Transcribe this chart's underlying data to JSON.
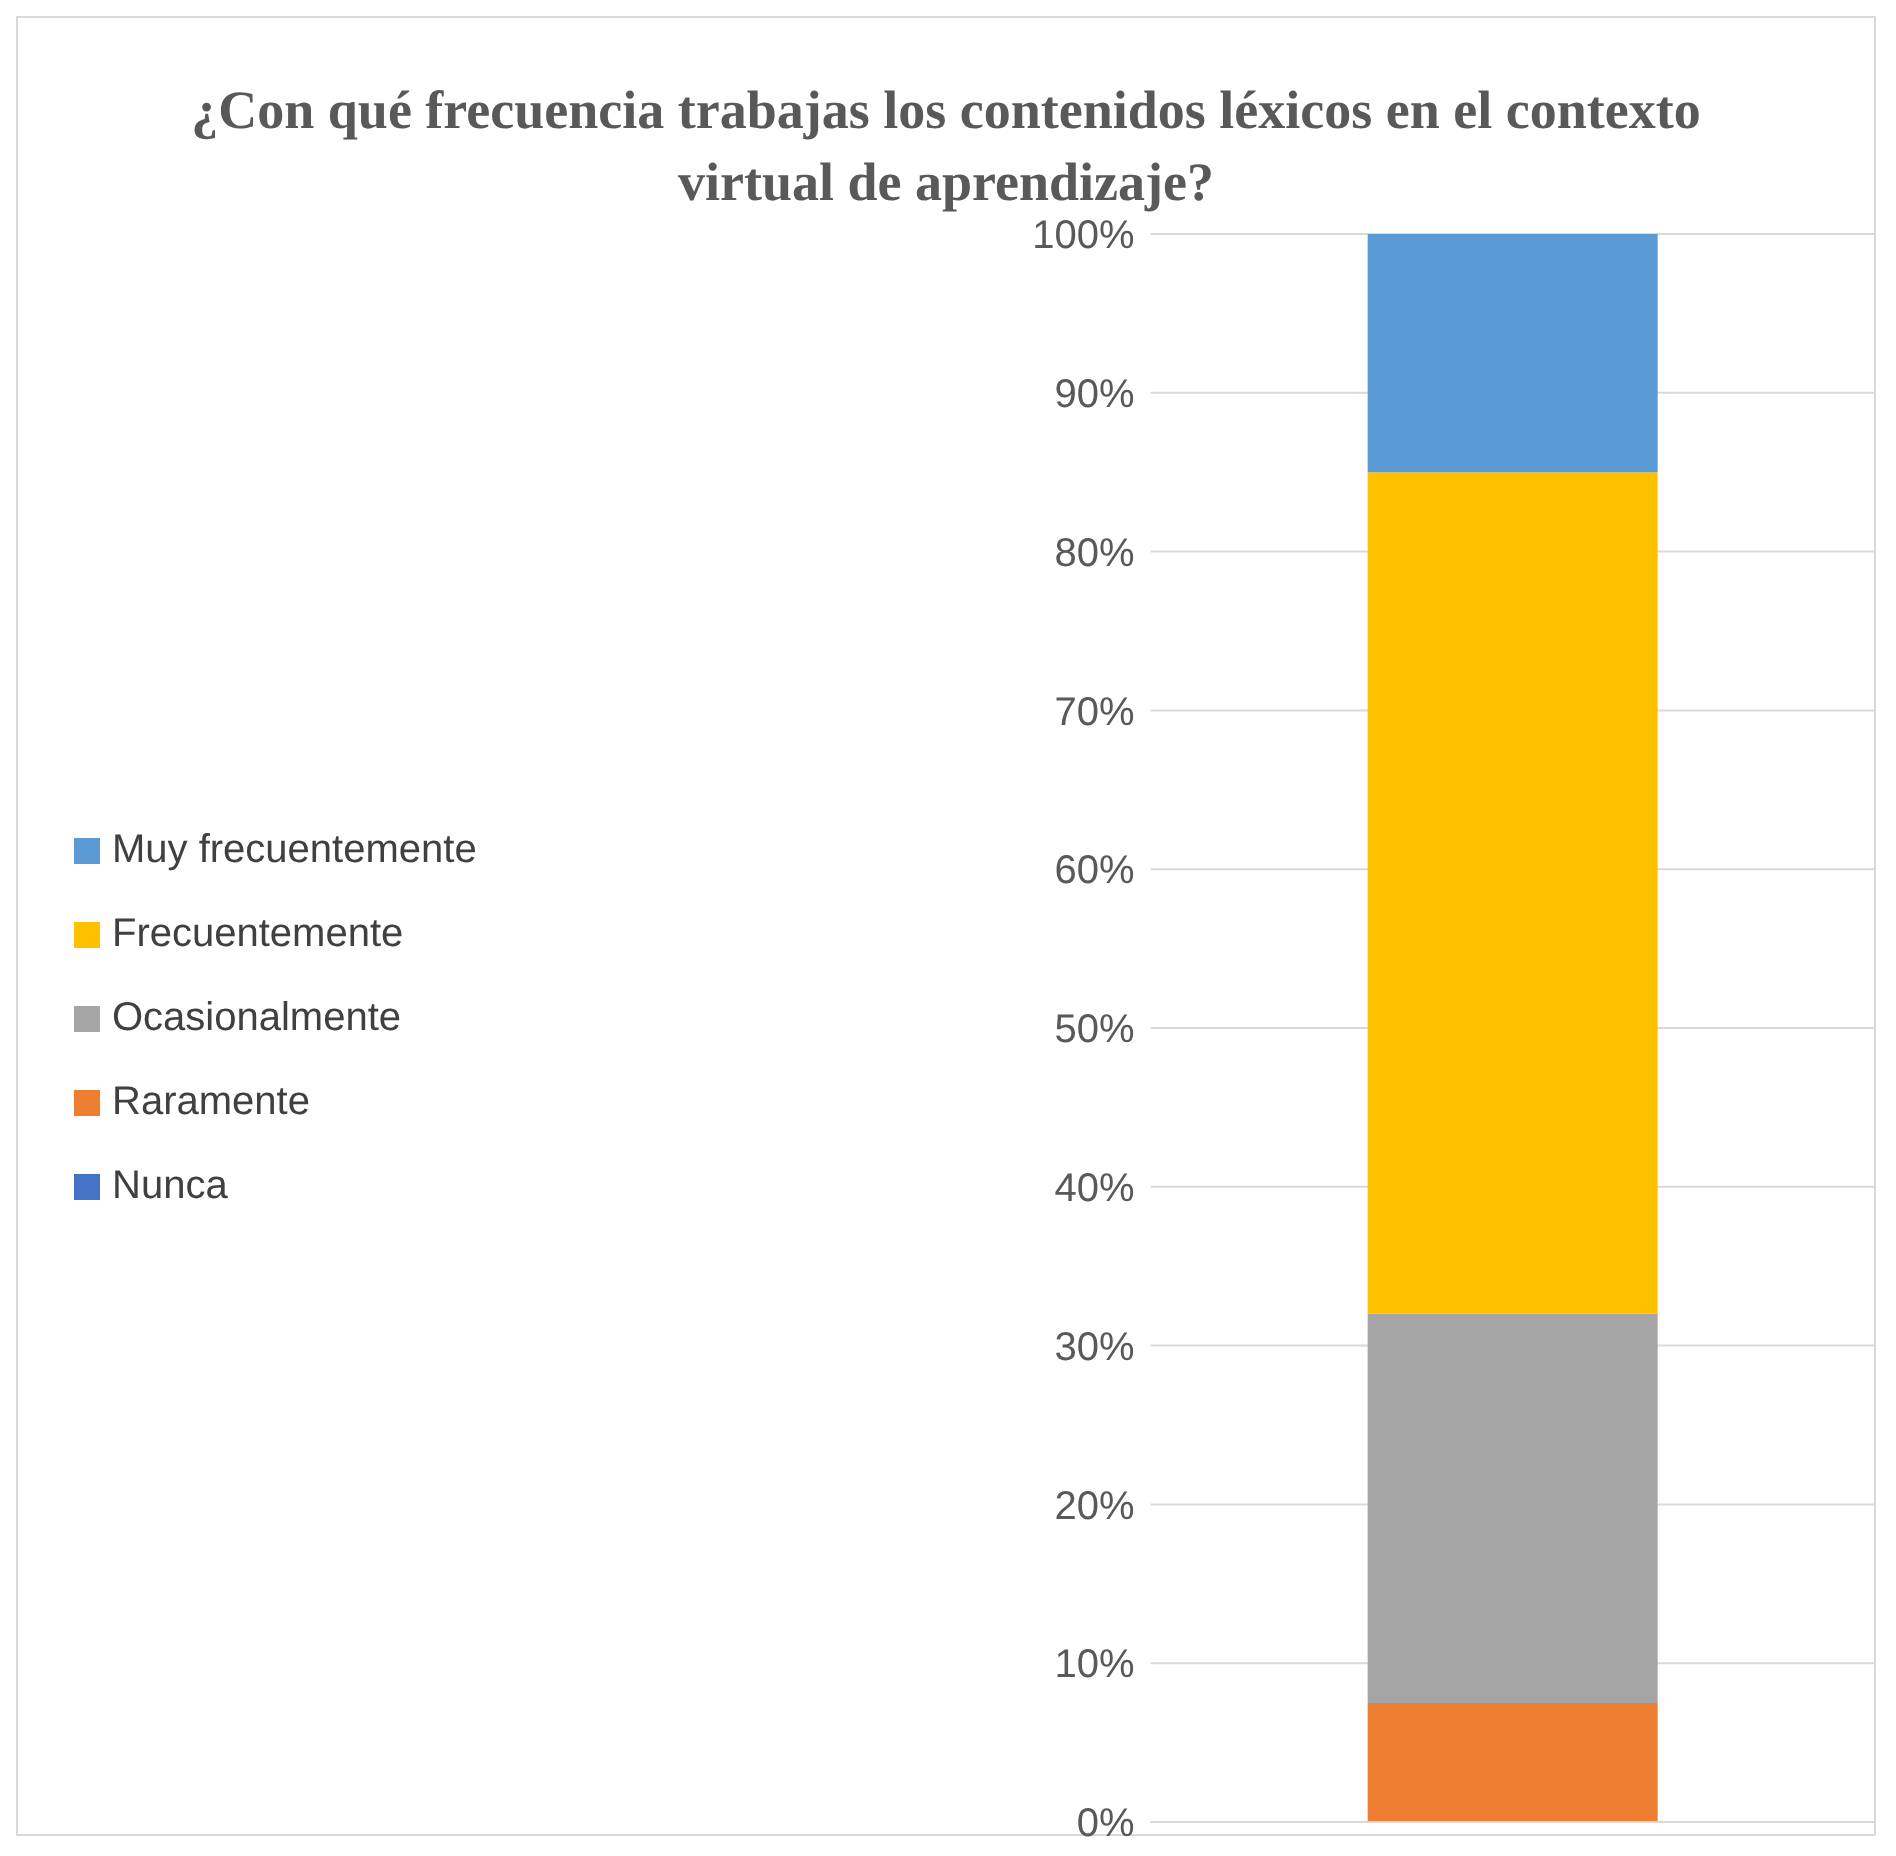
{
  "chart_data": {
    "type": "bar",
    "title": "¿Con qué frecuencia trabajas los contenidos léxicos en el contexto virtual de aprendizaje?",
    "categories": [
      null
    ],
    "stacked": true,
    "series": [
      {
        "name": "Nunca",
        "color": "#4472c4",
        "values": [
          0
        ]
      },
      {
        "name": "Raramente",
        "color": "#ed7d31",
        "values": [
          7.5
        ]
      },
      {
        "name": "Ocasionalmente",
        "color": "#a5a5a5",
        "values": [
          24.5
        ]
      },
      {
        "name": "Frecuentemente",
        "color": "#ffc000",
        "values": [
          53
        ]
      },
      {
        "name": "Muy frecuentemente",
        "color": "#5b9bd5",
        "values": [
          15
        ]
      }
    ],
    "ylim": [
      0,
      100
    ],
    "yticks": [
      {
        "value": 0,
        "label": "0%"
      },
      {
        "value": 10,
        "label": "10%"
      },
      {
        "value": 20,
        "label": "20%"
      },
      {
        "value": 30,
        "label": "30%"
      },
      {
        "value": 40,
        "label": "40%"
      },
      {
        "value": 50,
        "label": "50%"
      },
      {
        "value": 60,
        "label": "60%"
      },
      {
        "value": 70,
        "label": "70%"
      },
      {
        "value": 80,
        "label": "80%"
      },
      {
        "value": 90,
        "label": "90%"
      },
      {
        "value": 100,
        "label": "100%"
      }
    ],
    "grid": "y",
    "legend": "left"
  }
}
